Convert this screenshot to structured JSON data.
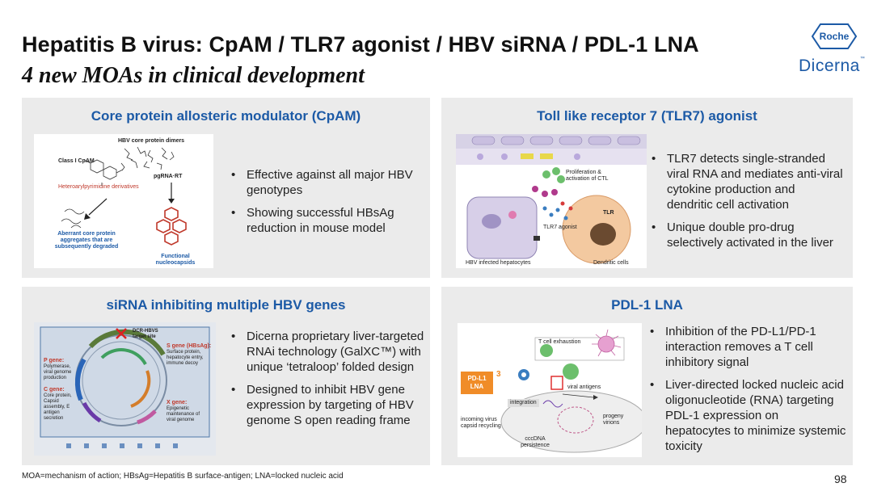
{
  "header": {
    "title": "Hepatitis B virus: CpAM / TLR7 agonist / HBV siRNA / PDL-1 LNA",
    "subtitle": "4 new MOAs in clinical development",
    "logo_roche": "Roche",
    "logo_dicerna": "Dicerna",
    "logo_dicerna_tm": "™"
  },
  "panels": {
    "cpam": {
      "title": "Core protein allosteric modulator (CpAM)",
      "bullets": [
        "Effective against all major HBV genotypes",
        "Showing successful HBsAg reduction in mouse model"
      ],
      "figure": {
        "top_label": "HBV core protein dimers",
        "class_label": "Class I CpAM",
        "pgrna_label": "pgRNA·RT",
        "hap_label": "Heteroarylpyrimidine derivatives",
        "aberrant_label": "Aberrant core protein aggregates that are subsequently degraded",
        "functional_label": "Functional nucleocapsids"
      }
    },
    "tlr7": {
      "title": "Toll like receptor 7 (TLR7) agonist",
      "bullets": [
        "TLR7 detects single-stranded viral RNA and mediates anti-viral cytokine production and dendritic cell activation",
        "Unique double pro-drug selectively activated in the liver"
      ],
      "figure": {
        "hep_label": "HBV infected hepatocytes",
        "dc_label": "Dendritic cells",
        "agonist_label": "TLR7 agonist",
        "tlr_label": "TLR",
        "prolif_label": "Proliferation & activation of CTL"
      }
    },
    "sirna": {
      "title": "siRNA inhibiting multiple HBV genes",
      "bullets": [
        "Dicerna proprietary liver-targeted RNAi technology (GalXC™) with unique ‘tetraloop’ folded design",
        "Designed to inhibit HBV gene expression by targeting of HBV genome S open reading frame"
      ],
      "figure": {
        "target_label": "DCR-HBVS target site",
        "s_gene": "S gene (HBsAg):",
        "s_gene_desc": "Surface protein, hepatocyte entry, immune decoy",
        "p_gene": "P gene:",
        "p_gene_desc": "Polymerase, viral genome production",
        "c_gene": "C gene:",
        "c_gene_desc": "Core protein, Capsid assembly, E antigen secretion",
        "x_gene": "X gene:",
        "x_gene_desc": "Epigenetic maintenance of viral genome"
      }
    },
    "pdl1": {
      "title": "PDL-1 LNA",
      "bullets": [
        "Inhibition of the PD-L1/PD-1 interaction removes a T cell inhibitory signal",
        "Liver-directed locked nucleic acid oligonucleotide (RNA) targeting PDL-1 expression on hepatocytes to minimize systemic toxicity"
      ],
      "figure": {
        "exhaustion_label": "T cell exhaustion",
        "box_label": "PD-L1 LNA",
        "marker": "3",
        "viral_antigens": "viral antigens",
        "integration": "integration",
        "incoming": "incoming virus capsid recycling",
        "progeny": "progeny virions",
        "cccdna": "cccDNA persistence"
      }
    }
  },
  "footer": {
    "footnote": "MOA=mechanism of action; HBsAg=Hepatitis B surface-antigen; LNA=locked nucleic acid",
    "page_number": "98"
  },
  "colors": {
    "accent_blue": "#1c5aa6",
    "panel_bg": "#ebebeb",
    "pdl1_box": "#f08c28"
  }
}
